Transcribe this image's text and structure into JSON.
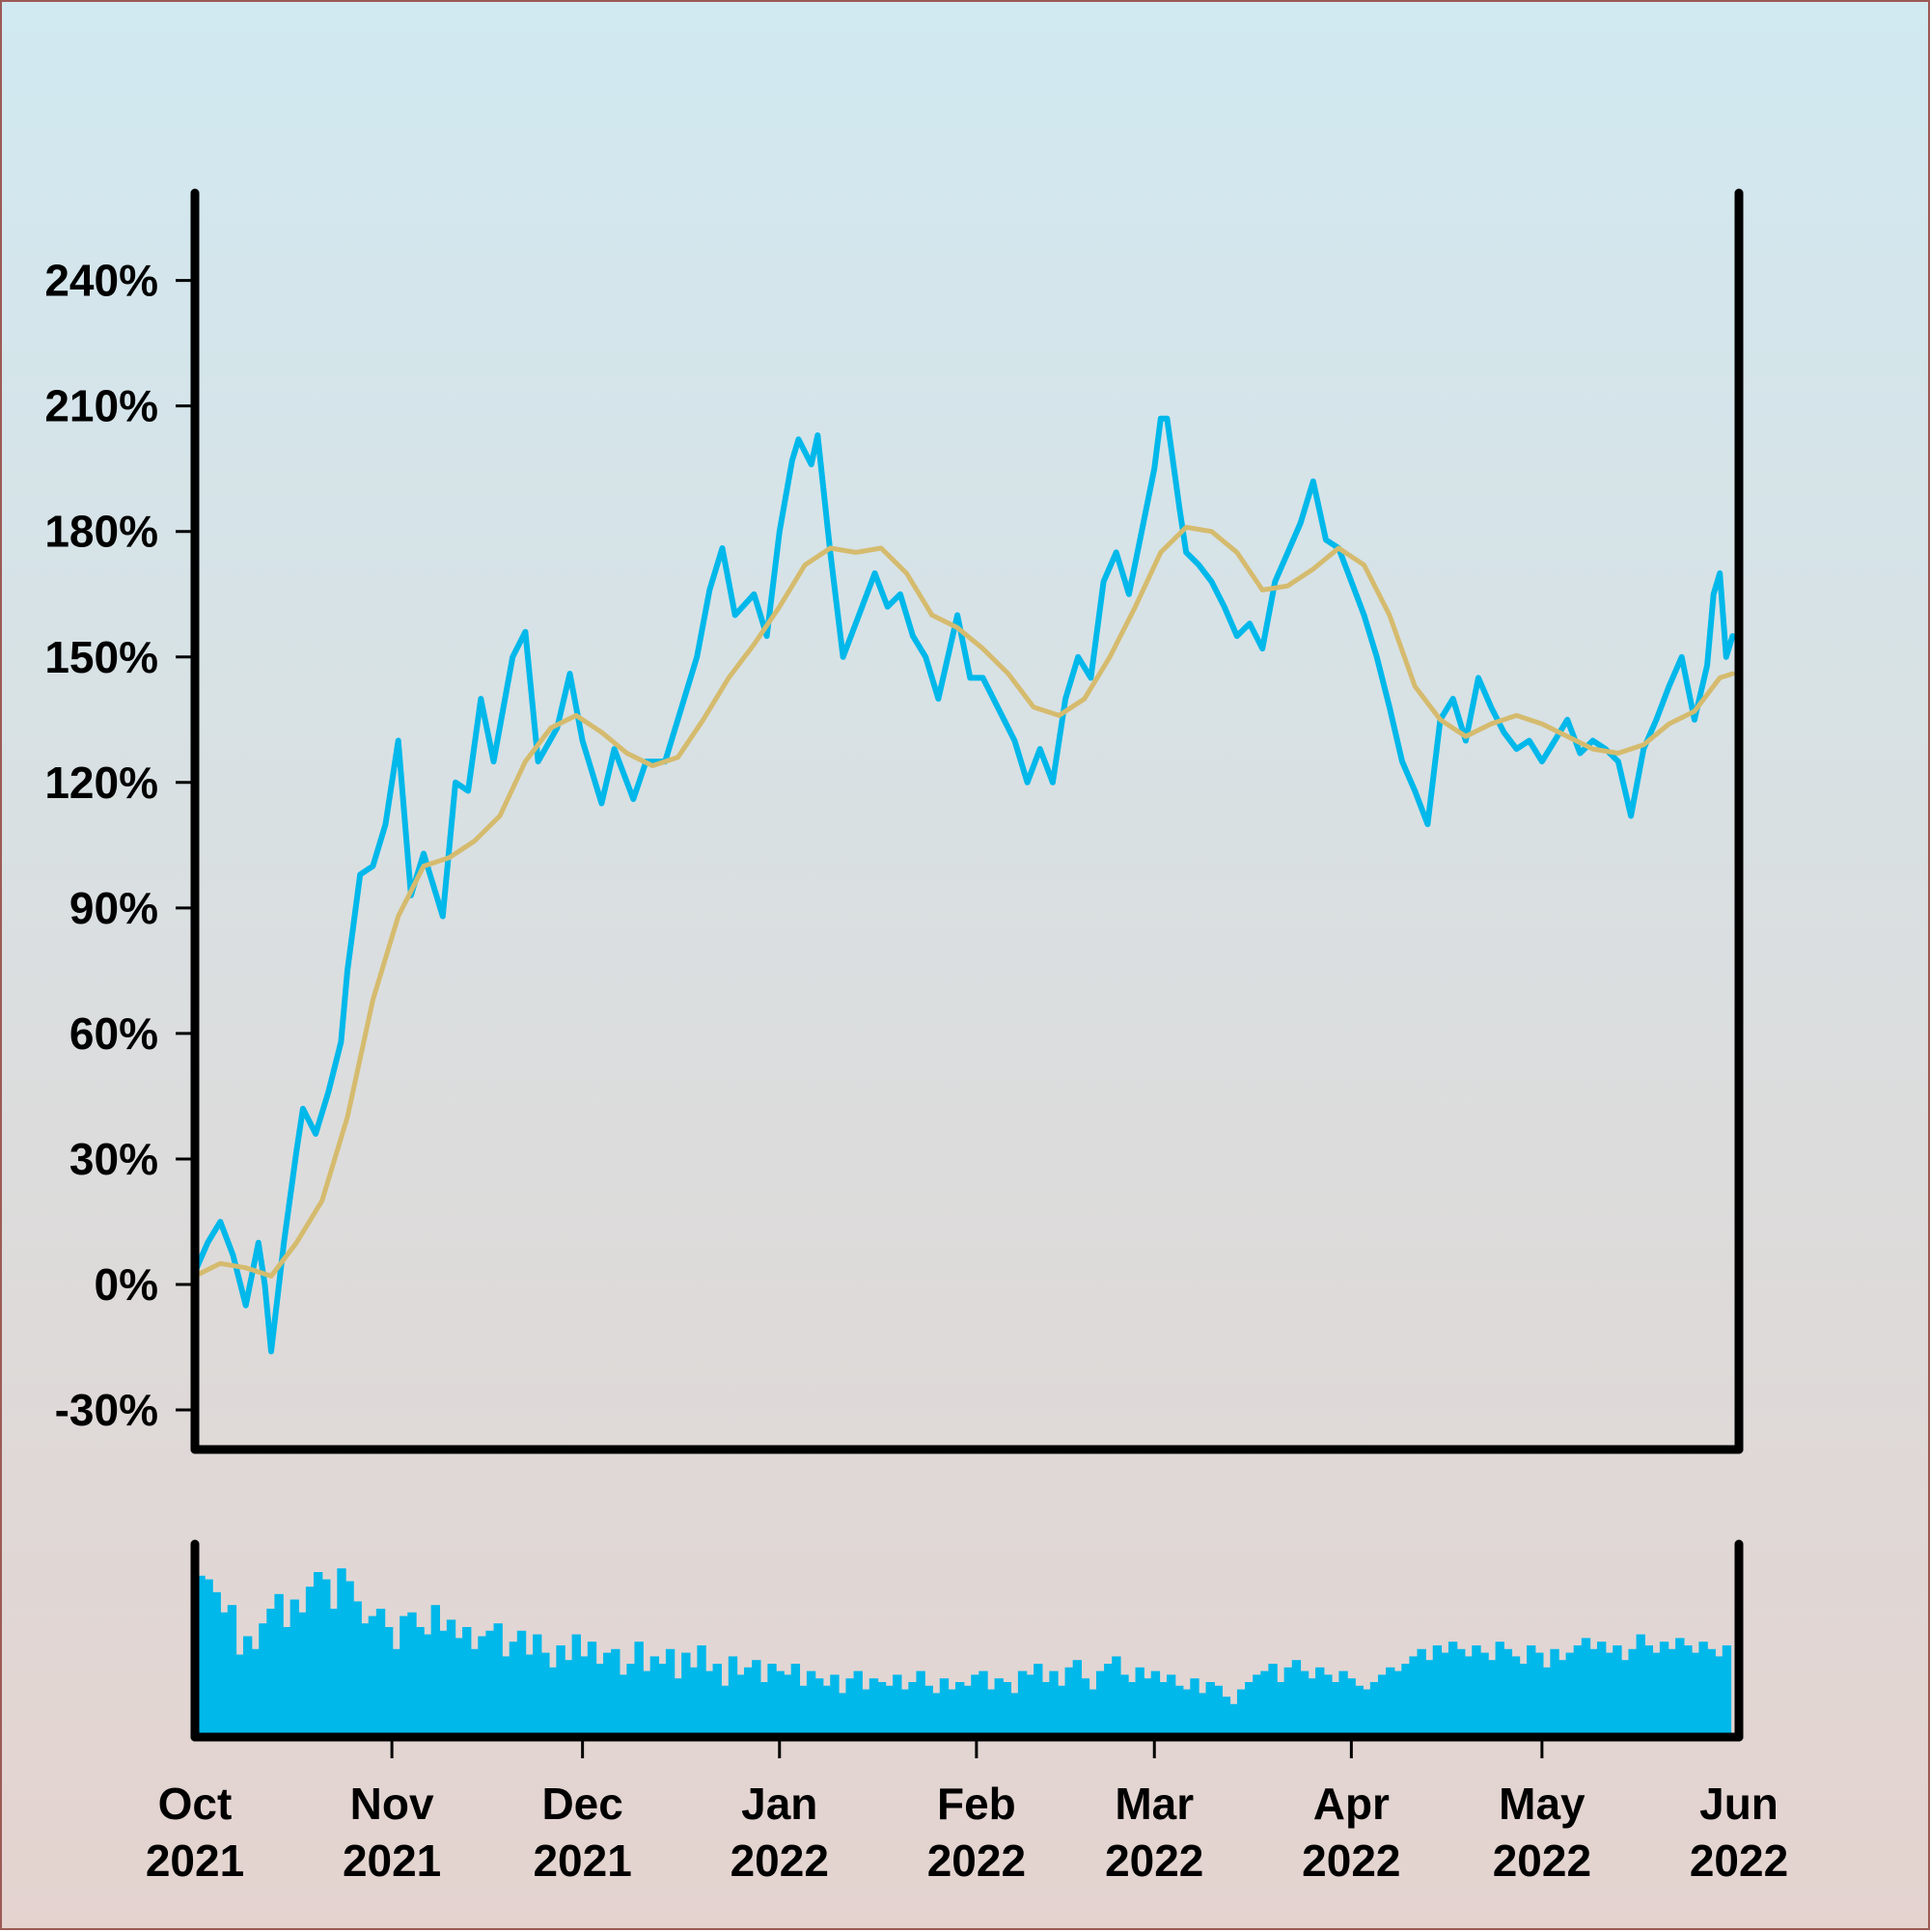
{
  "chart_data": [
    {
      "type": "line",
      "title": "",
      "xlabel": "",
      "ylabel": "",
      "ylim": [
        -35,
        260
      ],
      "y_ticks": [
        "-30%",
        "0%",
        "30%",
        "60%",
        "90%",
        "120%",
        "150%",
        "180%",
        "210%",
        "240%"
      ],
      "y_tick_values": [
        -30,
        0,
        30,
        60,
        90,
        120,
        150,
        180,
        210,
        240
      ],
      "x_tick_labels": [
        {
          "month": "Oct",
          "year": "2021"
        },
        {
          "month": "Nov",
          "year": "2021"
        },
        {
          "month": "Dec",
          "year": "2021"
        },
        {
          "month": "Jan",
          "year": "2022"
        },
        {
          "month": "Feb",
          "year": "2022"
        },
        {
          "month": "Mar",
          "year": "2022"
        },
        {
          "month": "Apr",
          "year": "2022"
        },
        {
          "month": "May",
          "year": "2022"
        },
        {
          "month": "Jun",
          "year": "2022"
        }
      ],
      "x_tick_dates": [
        "2021-10-01",
        "2021-11-01",
        "2021-12-01",
        "2022-01-01",
        "2022-02-01",
        "2022-03-01",
        "2022-04-01",
        "2022-05-01",
        "2022-06-01"
      ],
      "grid": false,
      "series": [
        {
          "color": "#00b8ea",
          "points": [
            [
              "2021-10-01",
              3
            ],
            [
              "2021-10-03",
              10
            ],
            [
              "2021-10-05",
              15
            ],
            [
              "2021-10-07",
              7
            ],
            [
              "2021-10-09",
              -5
            ],
            [
              "2021-10-11",
              10
            ],
            [
              "2021-10-12",
              0
            ],
            [
              "2021-10-13",
              -16
            ],
            [
              "2021-10-15",
              10
            ],
            [
              "2021-10-17",
              32
            ],
            [
              "2021-10-18",
              42
            ],
            [
              "2021-10-20",
              36
            ],
            [
              "2021-10-22",
              46
            ],
            [
              "2021-10-24",
              58
            ],
            [
              "2021-10-25",
              75
            ],
            [
              "2021-10-27",
              98
            ],
            [
              "2021-10-29",
              100
            ],
            [
              "2021-10-31",
              110
            ],
            [
              "2021-11-02",
              130
            ],
            [
              "2021-11-04",
              93
            ],
            [
              "2021-11-06",
              103
            ],
            [
              "2021-11-09",
              88
            ],
            [
              "2021-11-11",
              120
            ],
            [
              "2021-11-13",
              118
            ],
            [
              "2021-11-15",
              140
            ],
            [
              "2021-11-17",
              125
            ],
            [
              "2021-11-20",
              150
            ],
            [
              "2021-11-22",
              156
            ],
            [
              "2021-11-24",
              125
            ],
            [
              "2021-11-27",
              133
            ],
            [
              "2021-11-29",
              146
            ],
            [
              "2021-12-01",
              130
            ],
            [
              "2021-12-04",
              115
            ],
            [
              "2021-12-06",
              128
            ],
            [
              "2021-12-09",
              116
            ],
            [
              "2021-12-11",
              125
            ],
            [
              "2021-12-14",
              125
            ],
            [
              "2021-12-17",
              140
            ],
            [
              "2021-12-19",
              150
            ],
            [
              "2021-12-21",
              166
            ],
            [
              "2021-12-23",
              176
            ],
            [
              "2021-12-25",
              160
            ],
            [
              "2021-12-28",
              165
            ],
            [
              "2021-12-30",
              155
            ],
            [
              "2022-01-01",
              180
            ],
            [
              "2022-01-03",
              197
            ],
            [
              "2022-01-04",
              202
            ],
            [
              "2022-01-06",
              196
            ],
            [
              "2022-01-07",
              203
            ],
            [
              "2022-01-09",
              175
            ],
            [
              "2022-01-11",
              150
            ],
            [
              "2022-01-13",
              158
            ],
            [
              "2022-01-16",
              170
            ],
            [
              "2022-01-18",
              162
            ],
            [
              "2022-01-20",
              165
            ],
            [
              "2022-01-22",
              155
            ],
            [
              "2022-01-24",
              150
            ],
            [
              "2022-01-26",
              140
            ],
            [
              "2022-01-29",
              160
            ],
            [
              "2022-01-31",
              145
            ],
            [
              "2022-02-02",
              145
            ],
            [
              "2022-02-05",
              136
            ],
            [
              "2022-02-07",
              130
            ],
            [
              "2022-02-09",
              120
            ],
            [
              "2022-02-11",
              128
            ],
            [
              "2022-02-13",
              120
            ],
            [
              "2022-02-15",
              140
            ],
            [
              "2022-02-17",
              150
            ],
            [
              "2022-02-19",
              145
            ],
            [
              "2022-02-21",
              168
            ],
            [
              "2022-02-23",
              175
            ],
            [
              "2022-02-25",
              165
            ],
            [
              "2022-02-27",
              180
            ],
            [
              "2022-03-01",
              195
            ],
            [
              "2022-03-02",
              207
            ],
            [
              "2022-03-03",
              207
            ],
            [
              "2022-03-05",
              185
            ],
            [
              "2022-03-06",
              175
            ],
            [
              "2022-03-08",
              172
            ],
            [
              "2022-03-10",
              168
            ],
            [
              "2022-03-12",
              162
            ],
            [
              "2022-03-14",
              155
            ],
            [
              "2022-03-16",
              158
            ],
            [
              "2022-03-18",
              152
            ],
            [
              "2022-03-20",
              168
            ],
            [
              "2022-03-22",
              175
            ],
            [
              "2022-03-24",
              182
            ],
            [
              "2022-03-26",
              192
            ],
            [
              "2022-03-28",
              178
            ],
            [
              "2022-03-30",
              176
            ],
            [
              "2022-04-01",
              168
            ],
            [
              "2022-04-03",
              160
            ],
            [
              "2022-04-05",
              150
            ],
            [
              "2022-04-07",
              138
            ],
            [
              "2022-04-09",
              125
            ],
            [
              "2022-04-11",
              118
            ],
            [
              "2022-04-13",
              110
            ],
            [
              "2022-04-15",
              135
            ],
            [
              "2022-04-17",
              140
            ],
            [
              "2022-04-19",
              130
            ],
            [
              "2022-04-21",
              145
            ],
            [
              "2022-04-23",
              138
            ],
            [
              "2022-04-25",
              132
            ],
            [
              "2022-04-27",
              128
            ],
            [
              "2022-04-29",
              130
            ],
            [
              "2022-05-01",
              125
            ],
            [
              "2022-05-03",
              130
            ],
            [
              "2022-05-05",
              135
            ],
            [
              "2022-05-07",
              127
            ],
            [
              "2022-05-09",
              130
            ],
            [
              "2022-05-11",
              128
            ],
            [
              "2022-05-13",
              125
            ],
            [
              "2022-05-15",
              112
            ],
            [
              "2022-05-17",
              128
            ],
            [
              "2022-05-19",
              135
            ],
            [
              "2022-05-21",
              143
            ],
            [
              "2022-05-23",
              150
            ],
            [
              "2022-05-25",
              135
            ],
            [
              "2022-05-27",
              148
            ],
            [
              "2022-05-28",
              165
            ],
            [
              "2022-05-29",
              170
            ],
            [
              "2022-05-30",
              150
            ],
            [
              "2022-05-31",
              155
            ]
          ]
        },
        {
          "color": "#d5bb6e",
          "points": [
            [
              "2021-10-01",
              2
            ],
            [
              "2021-10-05",
              5
            ],
            [
              "2021-10-09",
              4
            ],
            [
              "2021-10-13",
              2
            ],
            [
              "2021-10-17",
              10
            ],
            [
              "2021-10-21",
              20
            ],
            [
              "2021-10-25",
              40
            ],
            [
              "2021-10-29",
              68
            ],
            [
              "2021-11-02",
              88
            ],
            [
              "2021-11-06",
              100
            ],
            [
              "2021-11-10",
              102
            ],
            [
              "2021-11-14",
              106
            ],
            [
              "2021-11-18",
              112
            ],
            [
              "2021-11-22",
              125
            ],
            [
              "2021-11-26",
              133
            ],
            [
              "2021-11-30",
              136
            ],
            [
              "2021-12-04",
              132
            ],
            [
              "2021-12-08",
              127
            ],
            [
              "2021-12-12",
              124
            ],
            [
              "2021-12-16",
              126
            ],
            [
              "2021-12-20",
              135
            ],
            [
              "2021-12-24",
              145
            ],
            [
              "2021-12-28",
              153
            ],
            [
              "2022-01-01",
              162
            ],
            [
              "2022-01-05",
              172
            ],
            [
              "2022-01-09",
              176
            ],
            [
              "2022-01-13",
              175
            ],
            [
              "2022-01-17",
              176
            ],
            [
              "2022-01-21",
              170
            ],
            [
              "2022-01-25",
              160
            ],
            [
              "2022-01-29",
              157
            ],
            [
              "2022-02-02",
              152
            ],
            [
              "2022-02-06",
              146
            ],
            [
              "2022-02-10",
              138
            ],
            [
              "2022-02-14",
              136
            ],
            [
              "2022-02-18",
              140
            ],
            [
              "2022-02-22",
              150
            ],
            [
              "2022-02-26",
              162
            ],
            [
              "2022-03-02",
              175
            ],
            [
              "2022-03-06",
              181
            ],
            [
              "2022-03-10",
              180
            ],
            [
              "2022-03-14",
              175
            ],
            [
              "2022-03-18",
              166
            ],
            [
              "2022-03-22",
              167
            ],
            [
              "2022-03-26",
              171
            ],
            [
              "2022-03-30",
              176
            ],
            [
              "2022-04-03",
              172
            ],
            [
              "2022-04-07",
              160
            ],
            [
              "2022-04-11",
              143
            ],
            [
              "2022-04-15",
              135
            ],
            [
              "2022-04-19",
              131
            ],
            [
              "2022-04-23",
              134
            ],
            [
              "2022-04-27",
              136
            ],
            [
              "2022-05-01",
              134
            ],
            [
              "2022-05-05",
              131
            ],
            [
              "2022-05-09",
              128
            ],
            [
              "2022-05-13",
              127
            ],
            [
              "2022-05-17",
              129
            ],
            [
              "2022-05-21",
              134
            ],
            [
              "2022-05-25",
              137
            ],
            [
              "2022-05-29",
              145
            ],
            [
              "2022-05-31",
              146
            ]
          ]
        }
      ]
    },
    {
      "type": "bar",
      "title": "",
      "color": "#00b8ea",
      "ylim": [
        0,
        1
      ],
      "start": "2021-10-01",
      "end": "2022-05-31",
      "values": [
        0.88,
        0.86,
        0.79,
        0.68,
        0.72,
        0.45,
        0.55,
        0.48,
        0.62,
        0.7,
        0.78,
        0.6,
        0.75,
        0.68,
        0.82,
        0.9,
        0.86,
        0.7,
        0.92,
        0.85,
        0.74,
        0.62,
        0.66,
        0.7,
        0.6,
        0.48,
        0.66,
        0.68,
        0.6,
        0.56,
        0.72,
        0.58,
        0.64,
        0.54,
        0.6,
        0.48,
        0.55,
        0.58,
        0.62,
        0.44,
        0.52,
        0.58,
        0.45,
        0.56,
        0.46,
        0.38,
        0.5,
        0.42,
        0.56,
        0.44,
        0.52,
        0.4,
        0.46,
        0.48,
        0.34,
        0.4,
        0.52,
        0.36,
        0.44,
        0.4,
        0.48,
        0.32,
        0.46,
        0.38,
        0.5,
        0.36,
        0.4,
        0.28,
        0.44,
        0.34,
        0.38,
        0.42,
        0.3,
        0.4,
        0.36,
        0.34,
        0.4,
        0.28,
        0.36,
        0.32,
        0.28,
        0.34,
        0.24,
        0.32,
        0.36,
        0.26,
        0.32,
        0.3,
        0.28,
        0.34,
        0.26,
        0.3,
        0.36,
        0.28,
        0.24,
        0.32,
        0.26,
        0.3,
        0.28,
        0.34,
        0.36,
        0.26,
        0.32,
        0.3,
        0.24,
        0.36,
        0.34,
        0.4,
        0.3,
        0.36,
        0.28,
        0.38,
        0.42,
        0.32,
        0.26,
        0.36,
        0.4,
        0.44,
        0.34,
        0.3,
        0.38,
        0.32,
        0.36,
        0.3,
        0.34,
        0.28,
        0.26,
        0.32,
        0.24,
        0.3,
        0.28,
        0.22,
        0.18,
        0.26,
        0.3,
        0.34,
        0.36,
        0.4,
        0.3,
        0.38,
        0.42,
        0.36,
        0.32,
        0.38,
        0.34,
        0.3,
        0.36,
        0.32,
        0.28,
        0.26,
        0.3,
        0.34,
        0.38,
        0.36,
        0.4,
        0.44,
        0.48,
        0.42,
        0.5,
        0.46,
        0.52,
        0.48,
        0.44,
        0.5,
        0.46,
        0.42,
        0.52,
        0.48,
        0.44,
        0.4,
        0.5,
        0.46,
        0.38,
        0.48,
        0.42,
        0.46,
        0.5,
        0.54,
        0.48,
        0.52,
        0.46,
        0.5,
        0.42,
        0.48,
        0.56,
        0.5,
        0.46,
        0.52,
        0.48,
        0.54,
        0.5,
        0.46,
        0.52,
        0.48,
        0.44,
        0.5
      ]
    }
  ]
}
